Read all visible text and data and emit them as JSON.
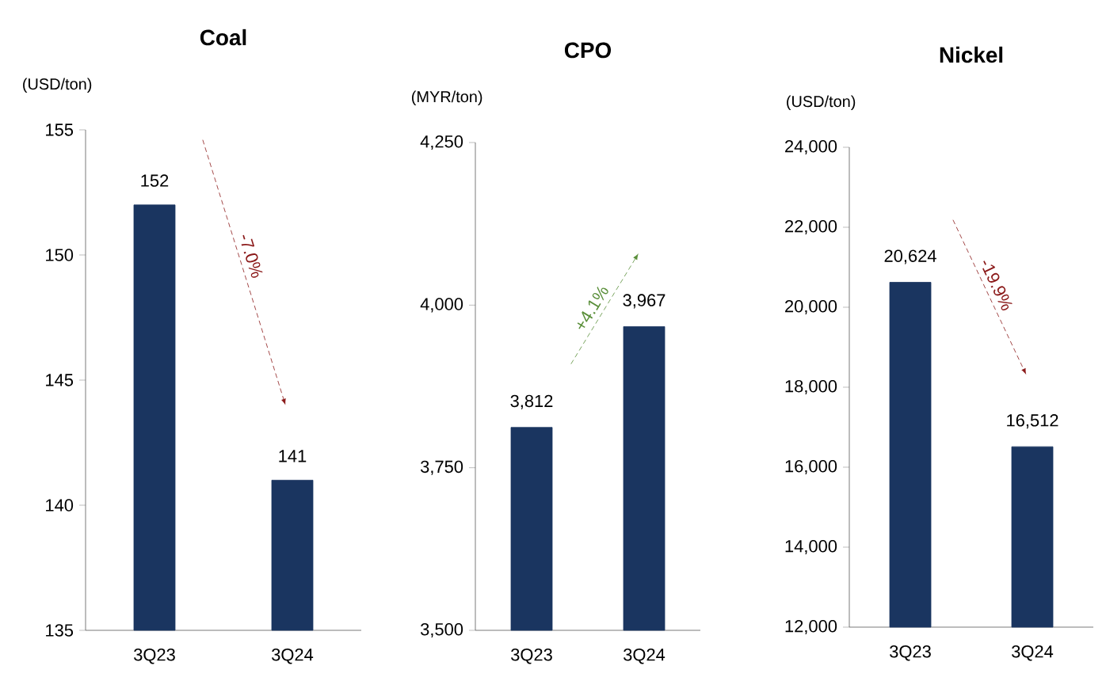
{
  "chart_data": [
    {
      "type": "bar",
      "title": "Coal",
      "ylabel": "(USD/ton)",
      "categories": [
        "3Q23",
        "3Q24"
      ],
      "values": [
        152,
        141
      ],
      "color": "#1a3560",
      "ylim": [
        135,
        155
      ],
      "yticks": [
        135,
        140,
        145,
        150,
        155
      ],
      "data_labels": true,
      "annotations": [
        "-7.0%"
      ]
    },
    {
      "type": "bar",
      "title": "CPO",
      "ylabel": "(MYR/ton)",
      "categories": [
        "3Q23",
        "3Q24"
      ],
      "values": [
        3812,
        3967
      ],
      "value_labels": [
        "3,812",
        "3,967"
      ],
      "color": "#1a3560",
      "ylim": [
        3500,
        4250
      ],
      "yticks": [
        {
          "value": 3500,
          "label": "3,500"
        },
        {
          "value": 3750,
          "label": "3,750"
        },
        {
          "value": 4000,
          "label": "4,000"
        },
        {
          "value": 4250,
          "label": "4,250"
        }
      ],
      "annotations": [
        "+4.1%"
      ]
    },
    {
      "type": "bar",
      "title": "Nickel",
      "ylabel": "(USD/ton)",
      "categories": [
        "3Q23",
        "3Q24"
      ],
      "values": [
        20624,
        16512
      ],
      "value_labels": [
        "20,624",
        "16,512"
      ],
      "color": "#1a3560",
      "ylim": [
        12000,
        24000
      ],
      "yticks": [
        {
          "value": 12000,
          "label": "12,000"
        },
        {
          "value": 14000,
          "label": "14,000"
        },
        {
          "value": 16000,
          "label": "16,000"
        },
        {
          "value": 18000,
          "label": "18,000"
        },
        {
          "value": 20000,
          "label": "20,000"
        },
        {
          "value": 22000,
          "label": "22,000"
        },
        {
          "value": 24000,
          "label": "24,000"
        }
      ],
      "annotations": [
        "-19.9%"
      ]
    }
  ]
}
